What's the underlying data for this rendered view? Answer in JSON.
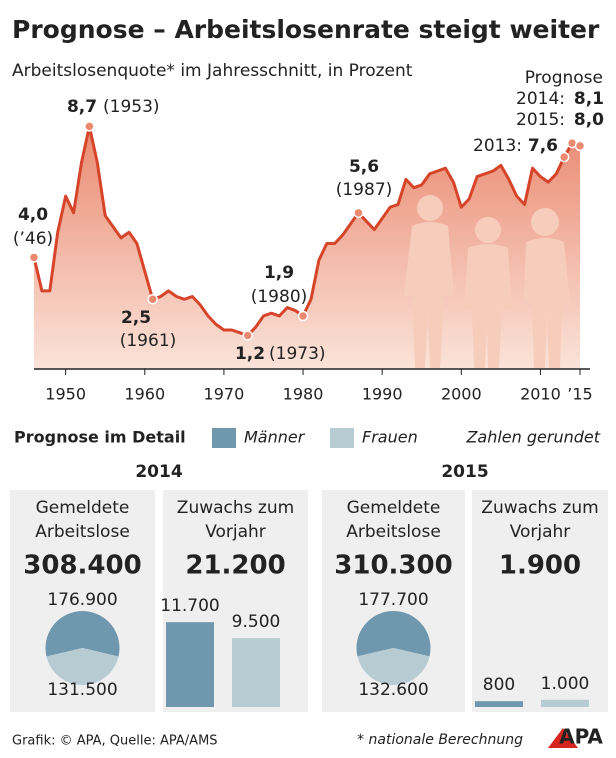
{
  "title": "Prognose – Arbeitslosenrate steigt weiter",
  "subtitle": "Arbeitslosenquote* im Jahresschnitt, in Prozent",
  "chart_data": [
    {
      "type": "area",
      "forecast_label": "Prognose",
      "x": [
        1946,
        1947,
        1948,
        1949,
        1950,
        1951,
        1952,
        1953,
        1954,
        1955,
        1956,
        1957,
        1958,
        1959,
        1960,
        1961,
        1962,
        1963,
        1964,
        1965,
        1966,
        1967,
        1968,
        1969,
        1970,
        1971,
        1972,
        1973,
        1974,
        1975,
        1976,
        1977,
        1978,
        1979,
        1980,
        1981,
        1982,
        1983,
        1984,
        1985,
        1986,
        1987,
        1988,
        1989,
        1990,
        1991,
        1992,
        1993,
        1994,
        1995,
        1996,
        1997,
        1998,
        1999,
        2000,
        2001,
        2002,
        2003,
        2004,
        2005,
        2006,
        2007,
        2008,
        2009,
        2010,
        2011,
        2012,
        2013,
        2014,
        2015
      ],
      "values": [
        4.0,
        2.8,
        2.8,
        4.9,
        6.2,
        5.6,
        7.4,
        8.7,
        7.4,
        5.5,
        5.1,
        4.7,
        4.9,
        4.5,
        3.5,
        2.5,
        2.6,
        2.8,
        2.6,
        2.5,
        2.6,
        2.3,
        1.9,
        1.6,
        1.4,
        1.4,
        1.3,
        1.2,
        1.5,
        1.9,
        2.0,
        1.9,
        2.2,
        2.1,
        1.9,
        2.5,
        3.9,
        4.5,
        4.5,
        4.8,
        5.2,
        5.6,
        5.3,
        5.0,
        5.4,
        5.8,
        5.9,
        6.8,
        6.5,
        6.6,
        7.0,
        7.1,
        7.2,
        6.7,
        5.8,
        6.1,
        6.9,
        7.0,
        7.1,
        7.3,
        6.8,
        6.2,
        5.9,
        7.2,
        6.9,
        6.7,
        7.0,
        7.6,
        8.1,
        8.0
      ],
      "value_labels": [
        "4,0",
        null,
        null,
        null,
        null,
        null,
        null,
        "8,7",
        null,
        null,
        null,
        null,
        null,
        null,
        null,
        "2,5",
        null,
        null,
        null,
        null,
        null,
        null,
        null,
        null,
        null,
        null,
        null,
        "1,2",
        null,
        null,
        null,
        null,
        null,
        null,
        "1,9",
        null,
        null,
        null,
        null,
        null,
        null,
        "5,6",
        null,
        null,
        null,
        null,
        null,
        null,
        null,
        null,
        null,
        null,
        null,
        null,
        null,
        null,
        null,
        null,
        null,
        null,
        null,
        null,
        null,
        null,
        null,
        null,
        null,
        "7,6",
        "8,1",
        "8,0"
      ],
      "value_notes": [
        "(’46)",
        null,
        null,
        null,
        null,
        null,
        null,
        "(1953)",
        null,
        null,
        null,
        null,
        null,
        null,
        null,
        "(1961)",
        null,
        null,
        null,
        null,
        null,
        null,
        null,
        null,
        null,
        null,
        null,
        "(1973)",
        null,
        null,
        null,
        null,
        null,
        null,
        "(1980)",
        null,
        null,
        null,
        null,
        null,
        null,
        "(1987)",
        null,
        null,
        null,
        null,
        null,
        null,
        null,
        null,
        null,
        null,
        null,
        null,
        null,
        null,
        null,
        null,
        null,
        null,
        null,
        null,
        null,
        null,
        null,
        null,
        null,
        "2013:",
        "2014:",
        "2015:"
      ],
      "color": "#d6452a",
      "fill": "#ea8a71",
      "xlim": [
        1946,
        2015
      ],
      "xticks": [
        1950,
        1960,
        1970,
        1980,
        1990,
        2000,
        2010,
        {
          "value": 2015,
          "label": "’15"
        }
      ],
      "ylim": [
        0,
        9
      ]
    },
    {
      "type": "pie",
      "header": "2014",
      "title": "Gemeldete Arbeitslose",
      "total": 308400,
      "total_label": "308.400",
      "values": [
        176900,
        131500
      ],
      "value_labels": [
        "176.900",
        "131.500"
      ],
      "colors": [
        "#6f97ad",
        "#b7cbd3"
      ]
    },
    {
      "type": "bar",
      "title": "Zuwachs zum Vorjahr",
      "total": 21200,
      "total_label": "21.200",
      "values": [
        11700,
        9500
      ],
      "value_labels": [
        "11.700",
        "9.500"
      ],
      "colors": [
        "#6f97ad",
        "#b7cbd3"
      ],
      "ylim": [
        0,
        12000
      ]
    },
    {
      "type": "pie",
      "header": "2015",
      "title": "Gemeldete Arbeitslose",
      "total": 310300,
      "total_label": "310.300",
      "values": [
        177700,
        132600
      ],
      "value_labels": [
        "177.700",
        "132.600"
      ],
      "colors": [
        "#6f97ad",
        "#b7cbd3"
      ]
    },
    {
      "type": "bar",
      "title": "Zuwachs zum Vorjahr",
      "total": 1900,
      "total_label": "1.900",
      "values": [
        800,
        1000
      ],
      "value_labels": [
        "800",
        "1.000"
      ],
      "colors": [
        "#6f97ad",
        "#b7cbd3"
      ],
      "ylim": [
        0,
        12000
      ]
    }
  ],
  "legend": {
    "title": "Prognose im Detail",
    "items": [
      {
        "name": "Männer",
        "color": "#6f97ad"
      },
      {
        "name": "Frauen",
        "color": "#b7cbd3"
      }
    ],
    "note": "Zahlen gerundet"
  },
  "footer": {
    "source": "Grafik: © APA, Quelle: APA/AMS",
    "footnote": "* nationale Berechnung",
    "logo": "APA"
  }
}
